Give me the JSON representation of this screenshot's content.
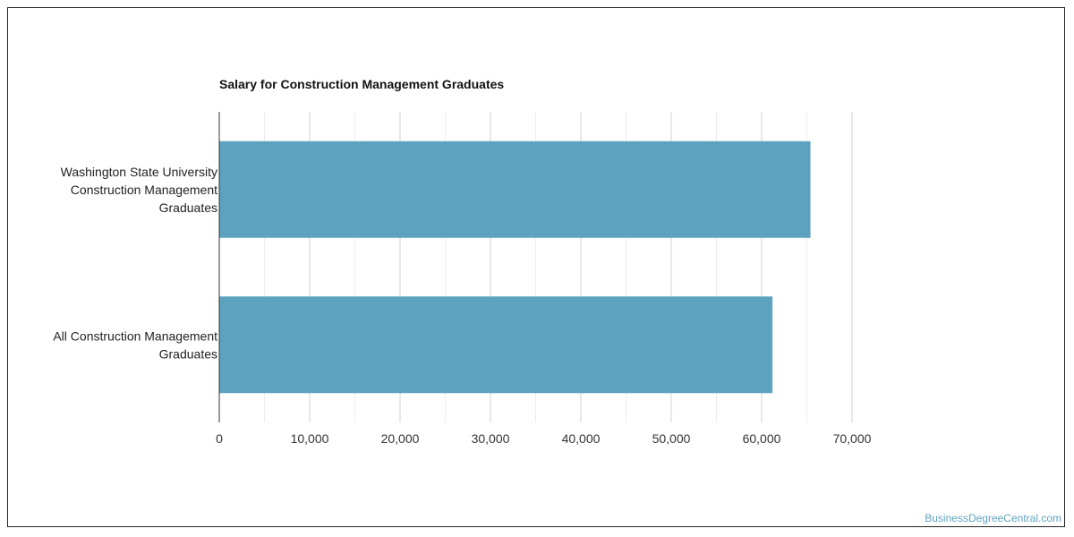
{
  "chart_data": {
    "type": "bar",
    "orientation": "horizontal",
    "title": "Salary for Construction Management Graduates",
    "categories": [
      [
        "Washington State University",
        "Construction Management",
        "Graduates"
      ],
      [
        "All Construction Management",
        "Graduates"
      ]
    ],
    "values": [
      65400,
      61200
    ],
    "xlim": [
      0,
      70000
    ],
    "xticks": [
      0,
      10000,
      20000,
      30000,
      40000,
      50000,
      60000,
      70000
    ],
    "xtick_labels": [
      "0",
      "10,000",
      "20,000",
      "30,000",
      "40,000",
      "50,000",
      "60,000",
      "70,000"
    ],
    "bar_color": "#5da2bf",
    "grid": true
  },
  "watermark": "BusinessDegreeCentral.com"
}
